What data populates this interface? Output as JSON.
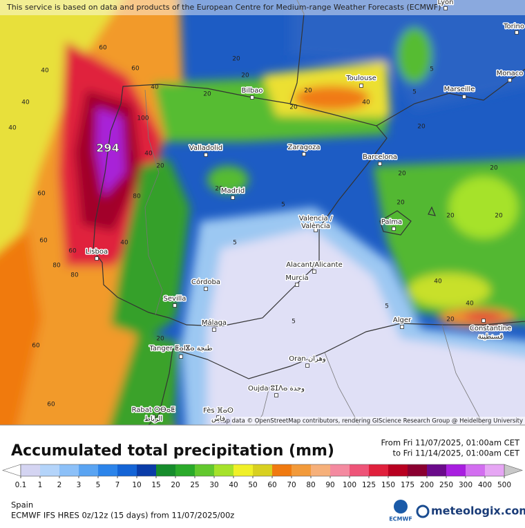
{
  "attribution_top": "This service is based on data and products of the European Centre for Medium-range Weather Forecasts (ECMWF)",
  "attribution_map": "Map data © OpenStreetMap contributors, rendering GIScience Research Group @ Heidelberg University",
  "cities": [
    "Lyon",
    "Torino",
    "Monaco",
    "Marseille",
    "Toulouse",
    "Bilbao",
    "Valladolid",
    "Zaragoza",
    "Barcelona",
    "Madrid",
    "Palma",
    "Valencia /",
    "València",
    "Lisboa",
    "Alacant/Alicante",
    "Murcia",
    "Córdoba",
    "Sevilla",
    "Málaga",
    "Alger",
    "Constantine",
    "قسنطينة",
    "Tanger ⵟⴰⵏⴵⴰ طنجة",
    "Oran وهران",
    "Oujda ⵓⵊⴷⴰ وجدة",
    "Rabat ⵔⴱⴰⵟ",
    "الرباط",
    "Fès ⴼⴰⵙ",
    "فاس"
  ],
  "contour_labels": [
    60,
    60,
    40,
    40,
    40,
    40,
    100,
    20,
    20,
    20,
    40,
    20,
    5,
    5,
    20,
    20,
    20,
    20,
    20,
    20,
    40,
    40,
    20,
    5,
    5,
    5,
    40,
    80,
    40,
    20,
    60,
    60,
    60,
    80,
    80,
    60,
    20,
    5,
    20,
    20,
    294,
    60
  ],
  "title": "Accumulated total precipitation (mm)",
  "period_from": "From Fri 11/07/2025, 01:00am CET",
  "period_to": "to Fri 11/14/2025, 01:00am CET",
  "legend": {
    "ticks": [
      0.1,
      1,
      2,
      3,
      5,
      7,
      10,
      15,
      20,
      25,
      30,
      40,
      50,
      60,
      70,
      80,
      90,
      100,
      125,
      150,
      175,
      200,
      250,
      300,
      400,
      500
    ],
    "colors": [
      "#d4d4f2",
      "#b4d4fa",
      "#8cc0f8",
      "#5aa4f2",
      "#2c84ea",
      "#1464d6",
      "#0a3ca8",
      "#168c2c",
      "#2aaa2a",
      "#62c82e",
      "#a6e22a",
      "#f0f028",
      "#d8d020",
      "#f07a10",
      "#f29a3a",
      "#f6b07a",
      "#f48aa0",
      "#ee5478",
      "#e0203c",
      "#b80020",
      "#8a0030",
      "#6a0a8a",
      "#a81ee0",
      "#d26ef0",
      "#e6a6f4"
    ],
    "under_color": "#ffffff",
    "over_color": "#c8c8c8"
  },
  "region": "Spain",
  "model": "ECMWF IFS HRES 0z/12z (15 days) from 11/07/2025/00z",
  "logos": {
    "ecmwf": "ECMWF",
    "meteologix": "meteologix.com"
  }
}
